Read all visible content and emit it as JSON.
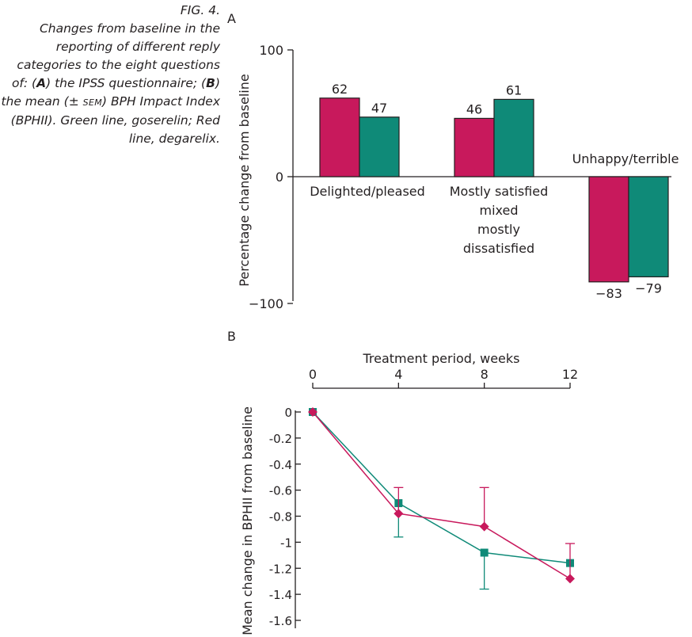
{
  "caption": {
    "fig_label": "FIG. 4.",
    "p1": "Changes from baseline in the reporting of different reply categories to the eight questions of: (",
    "a": "A",
    "p2": ") the IPSS questionnaire; (",
    "b": "B",
    "p3": ") the mean (± ",
    "sem": "SEM",
    "p4": ") BPH Impact Index (BPHII). Green line, goserelin; Red line, degarelix."
  },
  "colors": {
    "degarelix": "#c8195c",
    "goserelin": "#0f8a78",
    "axis": "#231f20"
  },
  "chart_data": [
    {
      "panel": "A",
      "type": "bar",
      "ylabel": "Percentage change from baseline",
      "ylim": [
        -100,
        100
      ],
      "yticks": [
        100,
        0,
        -100
      ],
      "ytick_labels": [
        "100",
        "0",
        "−100"
      ],
      "categories": [
        [
          "Delighted/pleased"
        ],
        [
          "Mostly satisfied",
          "mixed",
          "mostly",
          "dissatisfied"
        ],
        [
          "Unhappy/terrible"
        ]
      ],
      "series": [
        {
          "values": [
            62,
            46,
            -83
          ],
          "labels": [
            "62",
            "46",
            "−83"
          ],
          "color": "#c8195c"
        },
        {
          "values": [
            47,
            61,
            -79
          ],
          "labels": [
            "47",
            "61",
            "−79"
          ],
          "color": "#0f8a78"
        }
      ]
    },
    {
      "panel": "B",
      "type": "line",
      "xlabel": "Treatment period, weeks",
      "ylabel": "Mean change in BPHII from baseline",
      "x": [
        0,
        4,
        8,
        12
      ],
      "xlim": [
        0,
        12
      ],
      "ylim": [
        -1.6,
        0
      ],
      "yticks": [
        0,
        -0.2,
        -0.4,
        -0.6,
        -0.8,
        -1,
        -1.2,
        -1.4,
        -1.6
      ],
      "ytick_labels": [
        "0",
        "-0.2",
        "-0.4",
        "-0.6",
        "-0.8",
        "-1",
        "-1.2",
        "-1.4",
        "-1.6"
      ],
      "xtick_labels": [
        "0",
        "4",
        "8",
        "12"
      ],
      "series": [
        {
          "values": [
            0,
            -0.7,
            -1.08,
            -1.16
          ],
          "error": [
            0,
            0.26,
            0.28,
            null
          ],
          "marker": "square",
          "color": "#0f8a78"
        },
        {
          "values": [
            0,
            -0.78,
            -0.88,
            -1.28
          ],
          "error": [
            0,
            0.2,
            0.3,
            0.27
          ],
          "marker": "diamond",
          "color": "#c8195c"
        }
      ]
    }
  ]
}
